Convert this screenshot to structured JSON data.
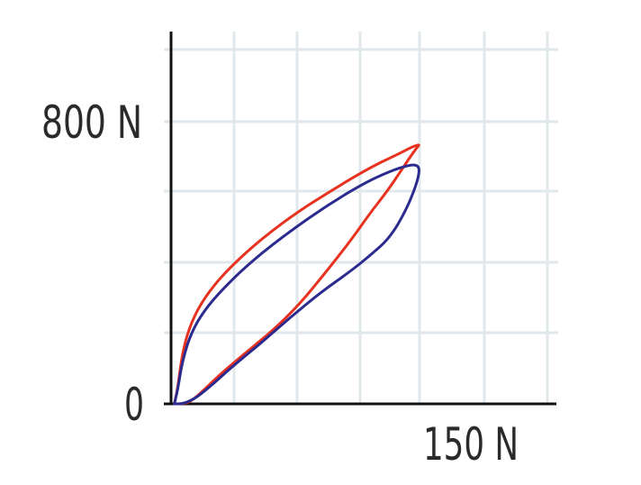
{
  "chart_data": {
    "type": "line",
    "title": "",
    "xlabel": "",
    "ylabel": "",
    "x_tick_labels": [
      "150 N"
    ],
    "y_tick_labels": [
      "800 N",
      "0"
    ],
    "xlim": [
      0,
      215
    ],
    "ylim": [
      0,
      1000
    ],
    "grid": true,
    "legend": "none",
    "colors": {
      "grid": "#e1e8ec",
      "axis": "#111111"
    },
    "series": [
      {
        "color": "#e8321f",
        "x": [
          2,
          4,
          7,
          12,
          20,
          32,
          50,
          72,
          95,
          120,
          138,
          146,
          150,
          149,
          145,
          138,
          130,
          120,
          108,
          92,
          78,
          62,
          45,
          30,
          20,
          14,
          10,
          6,
          2
        ],
        "y": [
          0,
          45,
          150,
          230,
          300,
          370,
          450,
          530,
          600,
          670,
          710,
          730,
          735,
          730,
          705,
          655,
          600,
          540,
          460,
          365,
          285,
          210,
          145,
          85,
          40,
          15,
          3,
          0,
          0
        ]
      },
      {
        "color": "#2b2a8e",
        "x": [
          2,
          4,
          7,
          12,
          20,
          32,
          50,
          72,
          95,
          118,
          135,
          145,
          149,
          150,
          148,
          142,
          132,
          120,
          108,
          90,
          72,
          55,
          38,
          25,
          16,
          10,
          6,
          2
        ],
        "y": [
          0,
          40,
          125,
          200,
          265,
          330,
          410,
          490,
          565,
          630,
          665,
          678,
          676,
          660,
          620,
          550,
          470,
          420,
          375,
          315,
          245,
          175,
          110,
          55,
          20,
          5,
          0,
          0
        ]
      }
    ]
  }
}
